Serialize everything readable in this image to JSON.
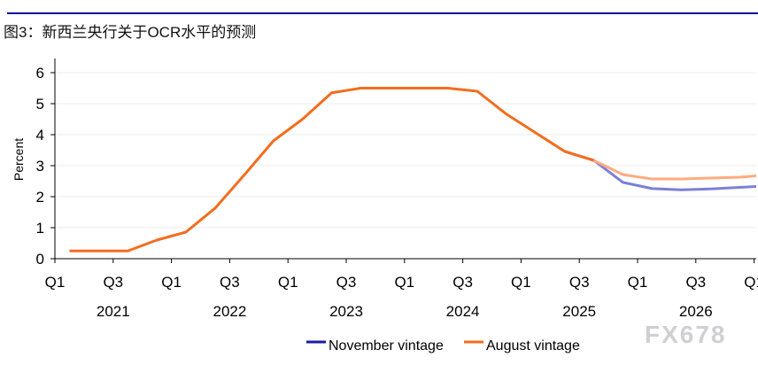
{
  "title": "图3：新西兰央行关于OCR水平的预测",
  "watermark": "FX678",
  "chart_data": {
    "type": "line",
    "title": "图3：新西兰央行关于OCR水平的预测",
    "ylabel": "Percent",
    "xlabel": "",
    "ylim": [
      0,
      6.4
    ],
    "yticks": [
      0,
      1,
      2,
      3,
      4,
      5,
      6
    ],
    "xticks": [
      {
        "q": "Q1",
        "year": "2021"
      },
      {
        "q": "Q3",
        "year": ""
      },
      {
        "q": "Q1",
        "year": "2022"
      },
      {
        "q": "Q3",
        "year": ""
      },
      {
        "q": "Q1",
        "year": "2023"
      },
      {
        "q": "Q3",
        "year": ""
      },
      {
        "q": "Q1",
        "year": "2024"
      },
      {
        "q": "Q3",
        "year": ""
      },
      {
        "q": "Q1",
        "year": "2025"
      },
      {
        "q": "Q3",
        "year": ""
      },
      {
        "q": "Q1",
        "year": "2026"
      },
      {
        "q": "Q3",
        "year": ""
      },
      {
        "q": "Q1",
        "year": ""
      }
    ],
    "years": [
      "2021",
      "2022",
      "2023",
      "2024",
      "2025",
      "2026"
    ],
    "x": [
      "2021Q1",
      "2021Q2",
      "2021Q3",
      "2021Q4",
      "2022Q1",
      "2022Q2",
      "2022Q3",
      "2022Q4",
      "2023Q1",
      "2023Q2",
      "2023Q3",
      "2023Q4",
      "2024Q1",
      "2024Q2",
      "2024Q3",
      "2024Q4",
      "2025Q1",
      "2025Q2",
      "2025Q3",
      "2025Q4",
      "2026Q1",
      "2026Q2",
      "2026Q3",
      "2026Q4",
      "2027Q1"
    ],
    "history": [
      0.25,
      0.25,
      0.25,
      0.6,
      0.86,
      1.63,
      2.7,
      3.8,
      4.5,
      5.35,
      5.5,
      5.5,
      5.5,
      5.5,
      5.4,
      4.66,
      4.06,
      3.46,
      3.17
    ],
    "series": [
      {
        "name": "November vintage",
        "color": "#7b80d8",
        "legend_color": "#1b1ba6",
        "values": [
          null,
          null,
          null,
          null,
          null,
          null,
          null,
          null,
          null,
          null,
          null,
          null,
          null,
          null,
          null,
          null,
          null,
          3.46,
          3.17,
          2.46,
          2.26,
          2.22,
          2.25,
          2.3,
          2.35
        ]
      },
      {
        "name": "August vintage",
        "color": "#ffab7e",
        "legend_color": "#f36d1e",
        "values": [
          null,
          null,
          null,
          null,
          null,
          null,
          null,
          null,
          null,
          null,
          null,
          null,
          null,
          null,
          null,
          null,
          null,
          3.46,
          3.17,
          2.71,
          2.57,
          2.57,
          2.6,
          2.63,
          2.7
        ]
      }
    ],
    "history_color": "#f36d1e",
    "grid": true,
    "legend": "bottom"
  }
}
